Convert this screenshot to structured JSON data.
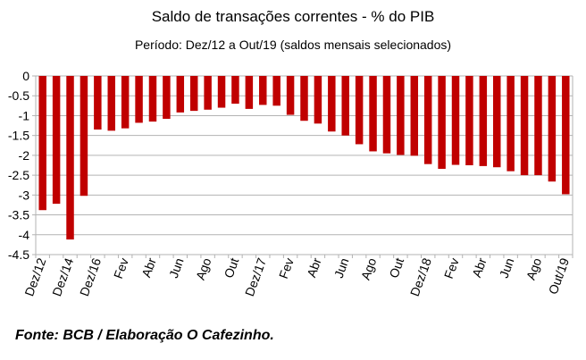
{
  "chart_data": {
    "type": "bar",
    "title": "Saldo de transações correntes - % do PIB",
    "subtitle": "Período: Dez/12 a Out/19 (saldos mensais selecionados)",
    "xlabel": "",
    "ylabel": "",
    "ylim": [
      -4.5,
      0
    ],
    "yticks": [
      0,
      -0.5,
      -1,
      -1.5,
      -2,
      -2.5,
      -3,
      -3.5,
      -4,
      -4.5
    ],
    "ytick_labels": [
      "0",
      "-0.5",
      "-1",
      "-1.5",
      "-2",
      "-2.5",
      "-3",
      "-3.5",
      "-4",
      "-4.5"
    ],
    "grid": true,
    "legend": "none",
    "bar_color": "#c00000",
    "xtick_labels": [
      {
        "index": 0,
        "label": "Dez/12"
      },
      {
        "index": 2,
        "label": "Dez/14"
      },
      {
        "index": 4,
        "label": "Dez/16"
      },
      {
        "index": 6,
        "label": "Fev"
      },
      {
        "index": 8,
        "label": "Abr"
      },
      {
        "index": 10,
        "label": "Jun"
      },
      {
        "index": 12,
        "label": "Ago"
      },
      {
        "index": 14,
        "label": "Out"
      },
      {
        "index": 16,
        "label": "Dez/17"
      },
      {
        "index": 18,
        "label": "Fev"
      },
      {
        "index": 20,
        "label": "Abr"
      },
      {
        "index": 22,
        "label": "Jun"
      },
      {
        "index": 24,
        "label": "Ago"
      },
      {
        "index": 26,
        "label": "Out"
      },
      {
        "index": 28,
        "label": "Dez/18"
      },
      {
        "index": 30,
        "label": "Fev"
      },
      {
        "index": 32,
        "label": "Abr"
      },
      {
        "index": 34,
        "label": "Jun"
      },
      {
        "index": 36,
        "label": "Ago"
      },
      {
        "index": 38,
        "label": "Out/19"
      }
    ],
    "values": [
      -3.38,
      -3.22,
      -4.12,
      -3.02,
      -1.35,
      -1.38,
      -1.32,
      -1.18,
      -1.15,
      -1.08,
      -0.92,
      -0.88,
      -0.85,
      -0.8,
      -0.7,
      -0.83,
      -0.73,
      -0.75,
      -0.98,
      -1.13,
      -1.2,
      -1.4,
      -1.5,
      -1.72,
      -1.9,
      -1.95,
      -1.99,
      -2.01,
      -2.22,
      -2.34,
      -2.24,
      -2.25,
      -2.27,
      -2.3,
      -2.4,
      -2.5,
      -2.5,
      -2.66,
      -2.98
    ]
  },
  "footer": {
    "source": "Fonte: BCB / Elaboração O Cafezinho."
  }
}
